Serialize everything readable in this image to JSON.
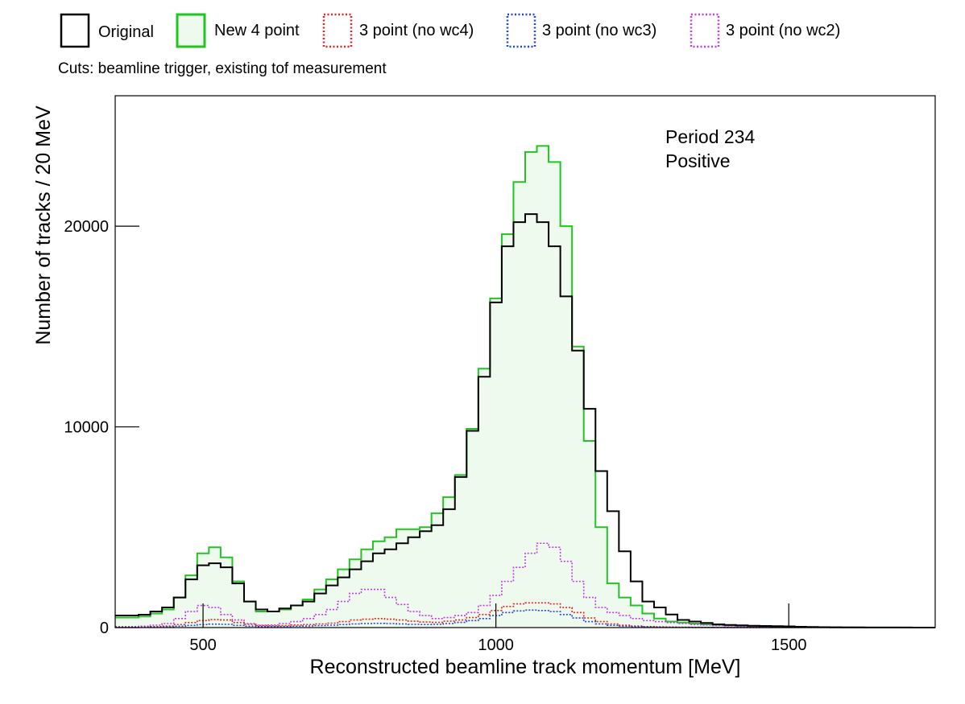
{
  "chart_data": {
    "type": "line",
    "subtype": "step-histogram",
    "xlabel": "Reconstructed beamline track momentum [MeV]",
    "ylabel": "Number of tracks / 20 MeV",
    "xlim": [
      350,
      1750
    ],
    "ylim": [
      0,
      26500
    ],
    "bin_width": 20,
    "x_ticks": [
      500,
      1000,
      1500
    ],
    "y_ticks": [
      0,
      10000,
      20000
    ],
    "grid": false,
    "legend_position": "top",
    "cuts": "Cuts: beamline trigger, existing tof measurement",
    "annotations": [
      "Period 234",
      "Positive"
    ],
    "bin_edges_start": 350,
    "series": [
      {
        "name": "Original",
        "color": "#000000",
        "style": "solid",
        "filled": false,
        "values": [
          600,
          600,
          640,
          800,
          1000,
          1500,
          2400,
          3100,
          3200,
          3000,
          2200,
          1300,
          900,
          800,
          950,
          1100,
          1300,
          1700,
          2100,
          2500,
          2900,
          3300,
          3700,
          3900,
          4200,
          4500,
          4800,
          5100,
          5900,
          7500,
          9800,
          12500,
          16200,
          19000,
          20200,
          20600,
          20200,
          19000,
          16500,
          13800,
          10900,
          7800,
          5800,
          3800,
          2300,
          1300,
          1000,
          650,
          380,
          300,
          230,
          160,
          130,
          110,
          90,
          80,
          70,
          60,
          40,
          30,
          20,
          15,
          10,
          8,
          6,
          5,
          4,
          3,
          2,
          1
        ]
      },
      {
        "name": "New 4 point",
        "color": "#22c322",
        "fill": "#eefaee",
        "style": "solid",
        "filled": true,
        "values": [
          500,
          500,
          550,
          700,
          900,
          1500,
          2600,
          3700,
          4000,
          3500,
          2300,
          1300,
          800,
          800,
          900,
          1100,
          1400,
          1900,
          2400,
          2900,
          3400,
          3900,
          4300,
          4500,
          4900,
          4900,
          5000,
          5700,
          6500,
          7600,
          9900,
          12900,
          16400,
          19600,
          22200,
          23700,
          24000,
          23200,
          20000,
          14000,
          9300,
          5000,
          2200,
          1500,
          1100,
          700,
          450,
          300,
          250,
          200,
          160,
          130,
          110,
          90,
          70,
          60,
          50,
          40,
          30,
          20,
          15,
          10,
          8,
          6,
          5,
          4,
          3,
          2,
          1,
          0
        ]
      },
      {
        "name": "3 point (no wc4)",
        "color": "#e8231e",
        "style": "dotted",
        "filled": false,
        "values": [
          20,
          20,
          30,
          50,
          80,
          150,
          250,
          350,
          400,
          380,
          250,
          160,
          100,
          90,
          100,
          130,
          150,
          180,
          220,
          300,
          380,
          420,
          450,
          420,
          380,
          320,
          280,
          260,
          320,
          380,
          500,
          650,
          850,
          1050,
          1180,
          1230,
          1230,
          1180,
          1000,
          750,
          480,
          300,
          180,
          120,
          80,
          50,
          35,
          25,
          20,
          15,
          10,
          8,
          6,
          5,
          4,
          3,
          2,
          1,
          1,
          1,
          0,
          0,
          0,
          0,
          0,
          0,
          0,
          0,
          0,
          0
        ]
      },
      {
        "name": "3 point (no wc3)",
        "color": "#2244dd",
        "style": "dotted",
        "filled": false,
        "values": [
          10,
          10,
          15,
          25,
          40,
          70,
          110,
          150,
          170,
          160,
          110,
          70,
          50,
          45,
          55,
          70,
          80,
          100,
          120,
          150,
          180,
          200,
          210,
          200,
          180,
          160,
          150,
          160,
          200,
          260,
          350,
          450,
          600,
          750,
          830,
          870,
          850,
          800,
          650,
          480,
          300,
          180,
          110,
          70,
          45,
          30,
          20,
          15,
          10,
          8,
          6,
          5,
          4,
          3,
          2,
          1,
          1,
          0,
          0,
          0,
          0,
          0,
          0,
          0,
          0,
          0,
          0,
          0,
          0,
          0
        ]
      },
      {
        "name": "3 point (no wc2)",
        "color": "#c23ce6",
        "style": "dotted",
        "filled": false,
        "values": [
          50,
          50,
          70,
          120,
          200,
          450,
          800,
          1100,
          1000,
          650,
          380,
          200,
          120,
          130,
          200,
          300,
          450,
          650,
          900,
          1300,
          1700,
          1900,
          1900,
          1500,
          1150,
          800,
          600,
          450,
          500,
          600,
          750,
          1100,
          1600,
          2300,
          3000,
          3700,
          4200,
          4000,
          3300,
          2300,
          1500,
          1000,
          750,
          600,
          450,
          350,
          300,
          250,
          200,
          150,
          120,
          100,
          80,
          60,
          50,
          40,
          30,
          25,
          20,
          15,
          10,
          8,
          6,
          4,
          3,
          2,
          1,
          1,
          0,
          0
        ]
      }
    ]
  }
}
